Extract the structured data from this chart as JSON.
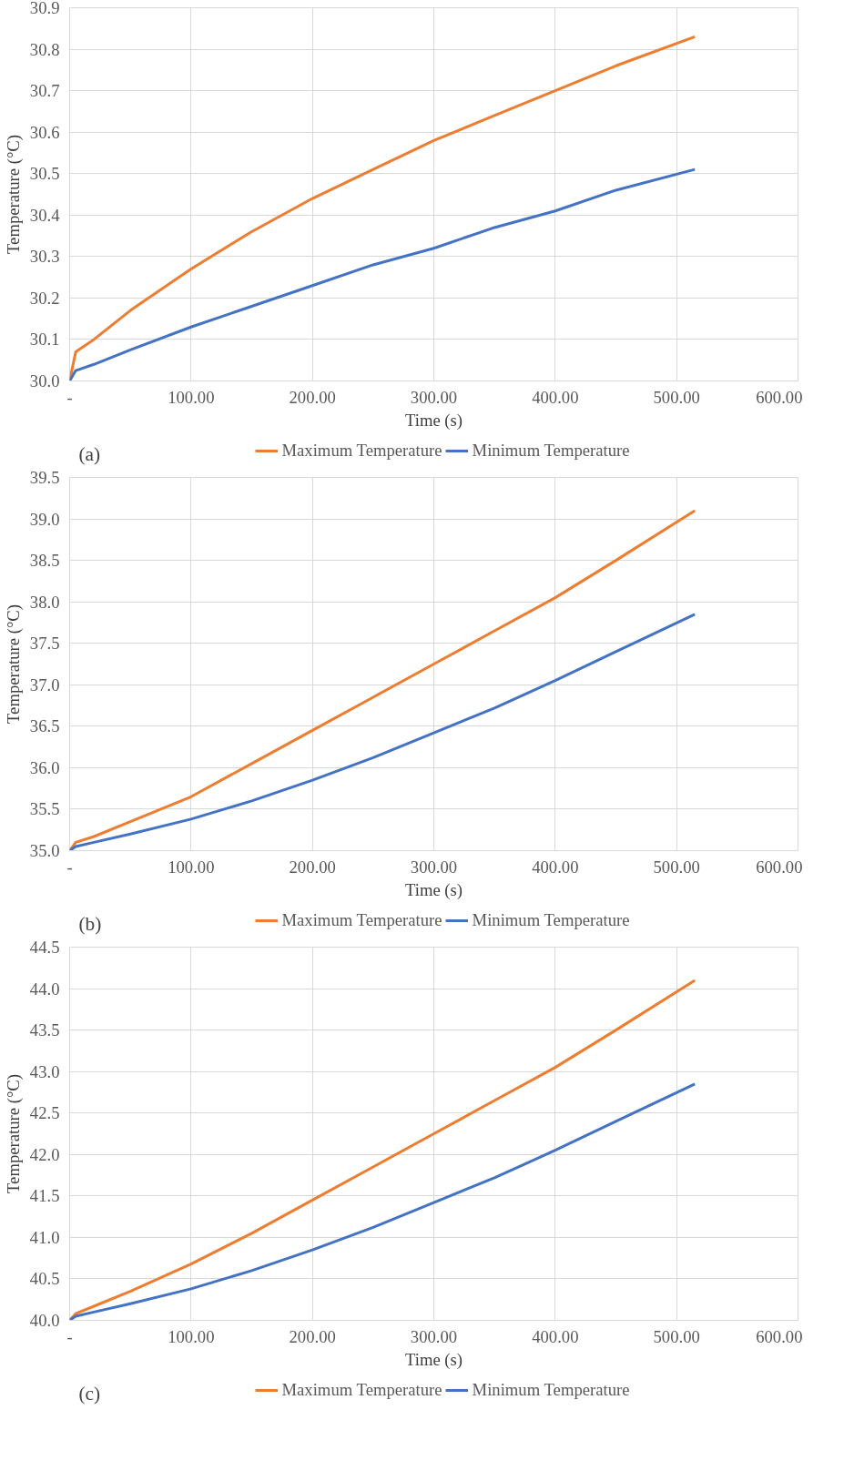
{
  "chart_data": [
    {
      "type": "line",
      "xlabel": "Time (s)",
      "ylabel": "Temperature (°C)",
      "annotations": [
        "(a)"
      ],
      "legend": "bottom",
      "grid": true,
      "marker": "none",
      "line_style": "solid",
      "x": [
        0,
        5,
        20,
        50,
        100,
        150,
        200,
        250,
        300,
        350,
        400,
        450,
        515
      ],
      "xlim": [
        0,
        600
      ],
      "xticks": [
        {
          "value": 0,
          "label": "-"
        },
        {
          "value": 100,
          "label": "100.00"
        },
        {
          "value": 200,
          "label": "200.00"
        },
        {
          "value": 300,
          "label": "300.00"
        },
        {
          "value": 400,
          "label": "400.00"
        },
        {
          "value": 500,
          "label": "500.00"
        },
        {
          "value": 600,
          "label": "600.00"
        }
      ],
      "ylim": [
        30.0,
        30.9
      ],
      "yticks": [
        {
          "value": 30,
          "label": "30.0"
        },
        30.1,
        30.2,
        30.3,
        30.4,
        30.5,
        30.6,
        30.7,
        30.8,
        30.9
      ],
      "series": [
        {
          "name": "Maximum Temperature",
          "color": "#ed7d31",
          "values": [
            30.0,
            30.07,
            30.1,
            30.17,
            30.27,
            30.36,
            30.44,
            30.51,
            30.58,
            30.64,
            30.7,
            30.76,
            30.83
          ]
        },
        {
          "name": "Minimum Temperature",
          "color": "#4472c4",
          "values": [
            30.0,
            30.025,
            30.04,
            30.075,
            30.13,
            30.18,
            30.23,
            30.28,
            30.32,
            30.37,
            30.41,
            30.46,
            30.51
          ]
        }
      ]
    },
    {
      "type": "line",
      "xlabel": "Time (s)",
      "ylabel": "Temperature (°C)",
      "annotations": [
        "(b)"
      ],
      "legend": "bottom",
      "grid": true,
      "marker": "none",
      "line_style": "solid",
      "x": [
        0,
        5,
        20,
        50,
        100,
        150,
        200,
        250,
        300,
        350,
        400,
        450,
        515
      ],
      "xlim": [
        0,
        600
      ],
      "xticks": [
        {
          "value": 0,
          "label": "-"
        },
        {
          "value": 100,
          "label": "100.00"
        },
        {
          "value": 200,
          "label": "200.00"
        },
        {
          "value": 300,
          "label": "300.00"
        },
        {
          "value": 400,
          "label": "400.00"
        },
        {
          "value": 500,
          "label": "500.00"
        },
        {
          "value": 600,
          "label": "600.00"
        }
      ],
      "ylim": [
        35.0,
        39.5
      ],
      "yticks": [
        {
          "value": 35,
          "label": "35.0"
        },
        35.5,
        {
          "value": 36,
          "label": "36.0"
        },
        36.5,
        {
          "value": 37,
          "label": "37.0"
        },
        37.5,
        {
          "value": 38,
          "label": "38.0"
        },
        38.5,
        {
          "value": 39,
          "label": "39.0"
        },
        39.5
      ],
      "series": [
        {
          "name": "Maximum Temperature",
          "color": "#ed7d31",
          "values": [
            35.0,
            35.1,
            35.17,
            35.35,
            35.65,
            36.05,
            36.45,
            36.85,
            37.25,
            37.65,
            38.05,
            38.5,
            39.1
          ]
        },
        {
          "name": "Minimum Temperature",
          "color": "#4472c4",
          "values": [
            35.0,
            35.05,
            35.1,
            35.2,
            35.38,
            35.6,
            35.85,
            36.12,
            36.42,
            36.72,
            37.05,
            37.4,
            37.85
          ]
        }
      ]
    },
    {
      "type": "line",
      "xlabel": "Time (s)",
      "ylabel": "Temperature (°C)",
      "annotations": [
        "(c)"
      ],
      "legend": "bottom",
      "grid": true,
      "marker": "none",
      "line_style": "solid",
      "x": [
        0,
        5,
        20,
        50,
        100,
        150,
        200,
        250,
        300,
        350,
        400,
        450,
        515
      ],
      "xlim": [
        0,
        600
      ],
      "xticks": [
        {
          "value": 0,
          "label": "-"
        },
        {
          "value": 100,
          "label": "100.00"
        },
        {
          "value": 200,
          "label": "200.00"
        },
        {
          "value": 300,
          "label": "300.00"
        },
        {
          "value": 400,
          "label": "400.00"
        },
        {
          "value": 500,
          "label": "500.00"
        },
        {
          "value": 600,
          "label": "600.00"
        }
      ],
      "ylim": [
        40.0,
        44.5
      ],
      "yticks": [
        {
          "value": 40,
          "label": "40.0"
        },
        40.5,
        {
          "value": 41,
          "label": "41.0"
        },
        41.5,
        {
          "value": 42,
          "label": "42.0"
        },
        42.5,
        {
          "value": 43,
          "label": "43.0"
        },
        43.5,
        {
          "value": 44,
          "label": "44.0"
        },
        44.5
      ],
      "series": [
        {
          "name": "Maximum Temperature",
          "color": "#ed7d31",
          "values": [
            40.0,
            40.08,
            40.17,
            40.35,
            40.68,
            41.05,
            41.45,
            41.85,
            42.25,
            42.65,
            43.05,
            43.5,
            44.1
          ]
        },
        {
          "name": "Minimum Temperature",
          "color": "#4472c4",
          "values": [
            40.0,
            40.05,
            40.1,
            40.2,
            40.38,
            40.6,
            40.85,
            41.12,
            41.42,
            41.72,
            42.05,
            42.4,
            42.85
          ]
        }
      ]
    }
  ]
}
